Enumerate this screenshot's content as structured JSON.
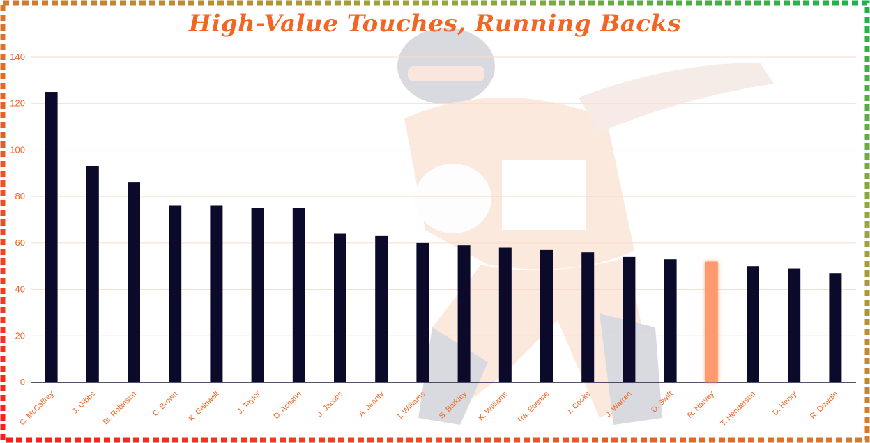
{
  "chart_data": {
    "type": "bar",
    "title": "High-Value Touches, Running Backs",
    "xlabel": "",
    "ylabel": "",
    "ylim": [
      0,
      140
    ],
    "yticks": [
      0,
      20,
      40,
      60,
      80,
      100,
      120,
      140
    ],
    "grid": true,
    "categories": [
      "C. McCaffrey",
      "J. Gibbs",
      "Bi. Robinson",
      "C. Brown",
      "K. Gainwell",
      "J. Taylor",
      "D. Achane",
      "J. Jacobs",
      "A. Jeanty",
      "J. Williams",
      "S. Barkley",
      "K. Williams",
      "Tra. Etienne",
      "J. Cooks",
      "J. Warren",
      "D. Swift",
      "R. Harvey",
      "T. Henderson",
      "D. Henry",
      "R. Dowdle"
    ],
    "values": [
      125,
      93,
      86,
      76,
      76,
      75,
      75,
      64,
      63,
      60,
      59,
      58,
      57,
      56,
      54,
      53,
      52,
      50,
      49,
      47
    ],
    "highlight": "R. Harvey",
    "colors": {
      "bar": "#0b0a2a",
      "highlight_bar": "#ff9a6e",
      "text": "#f26522",
      "gridline": "#fbd9c6",
      "axis": "#1a1a40"
    }
  }
}
